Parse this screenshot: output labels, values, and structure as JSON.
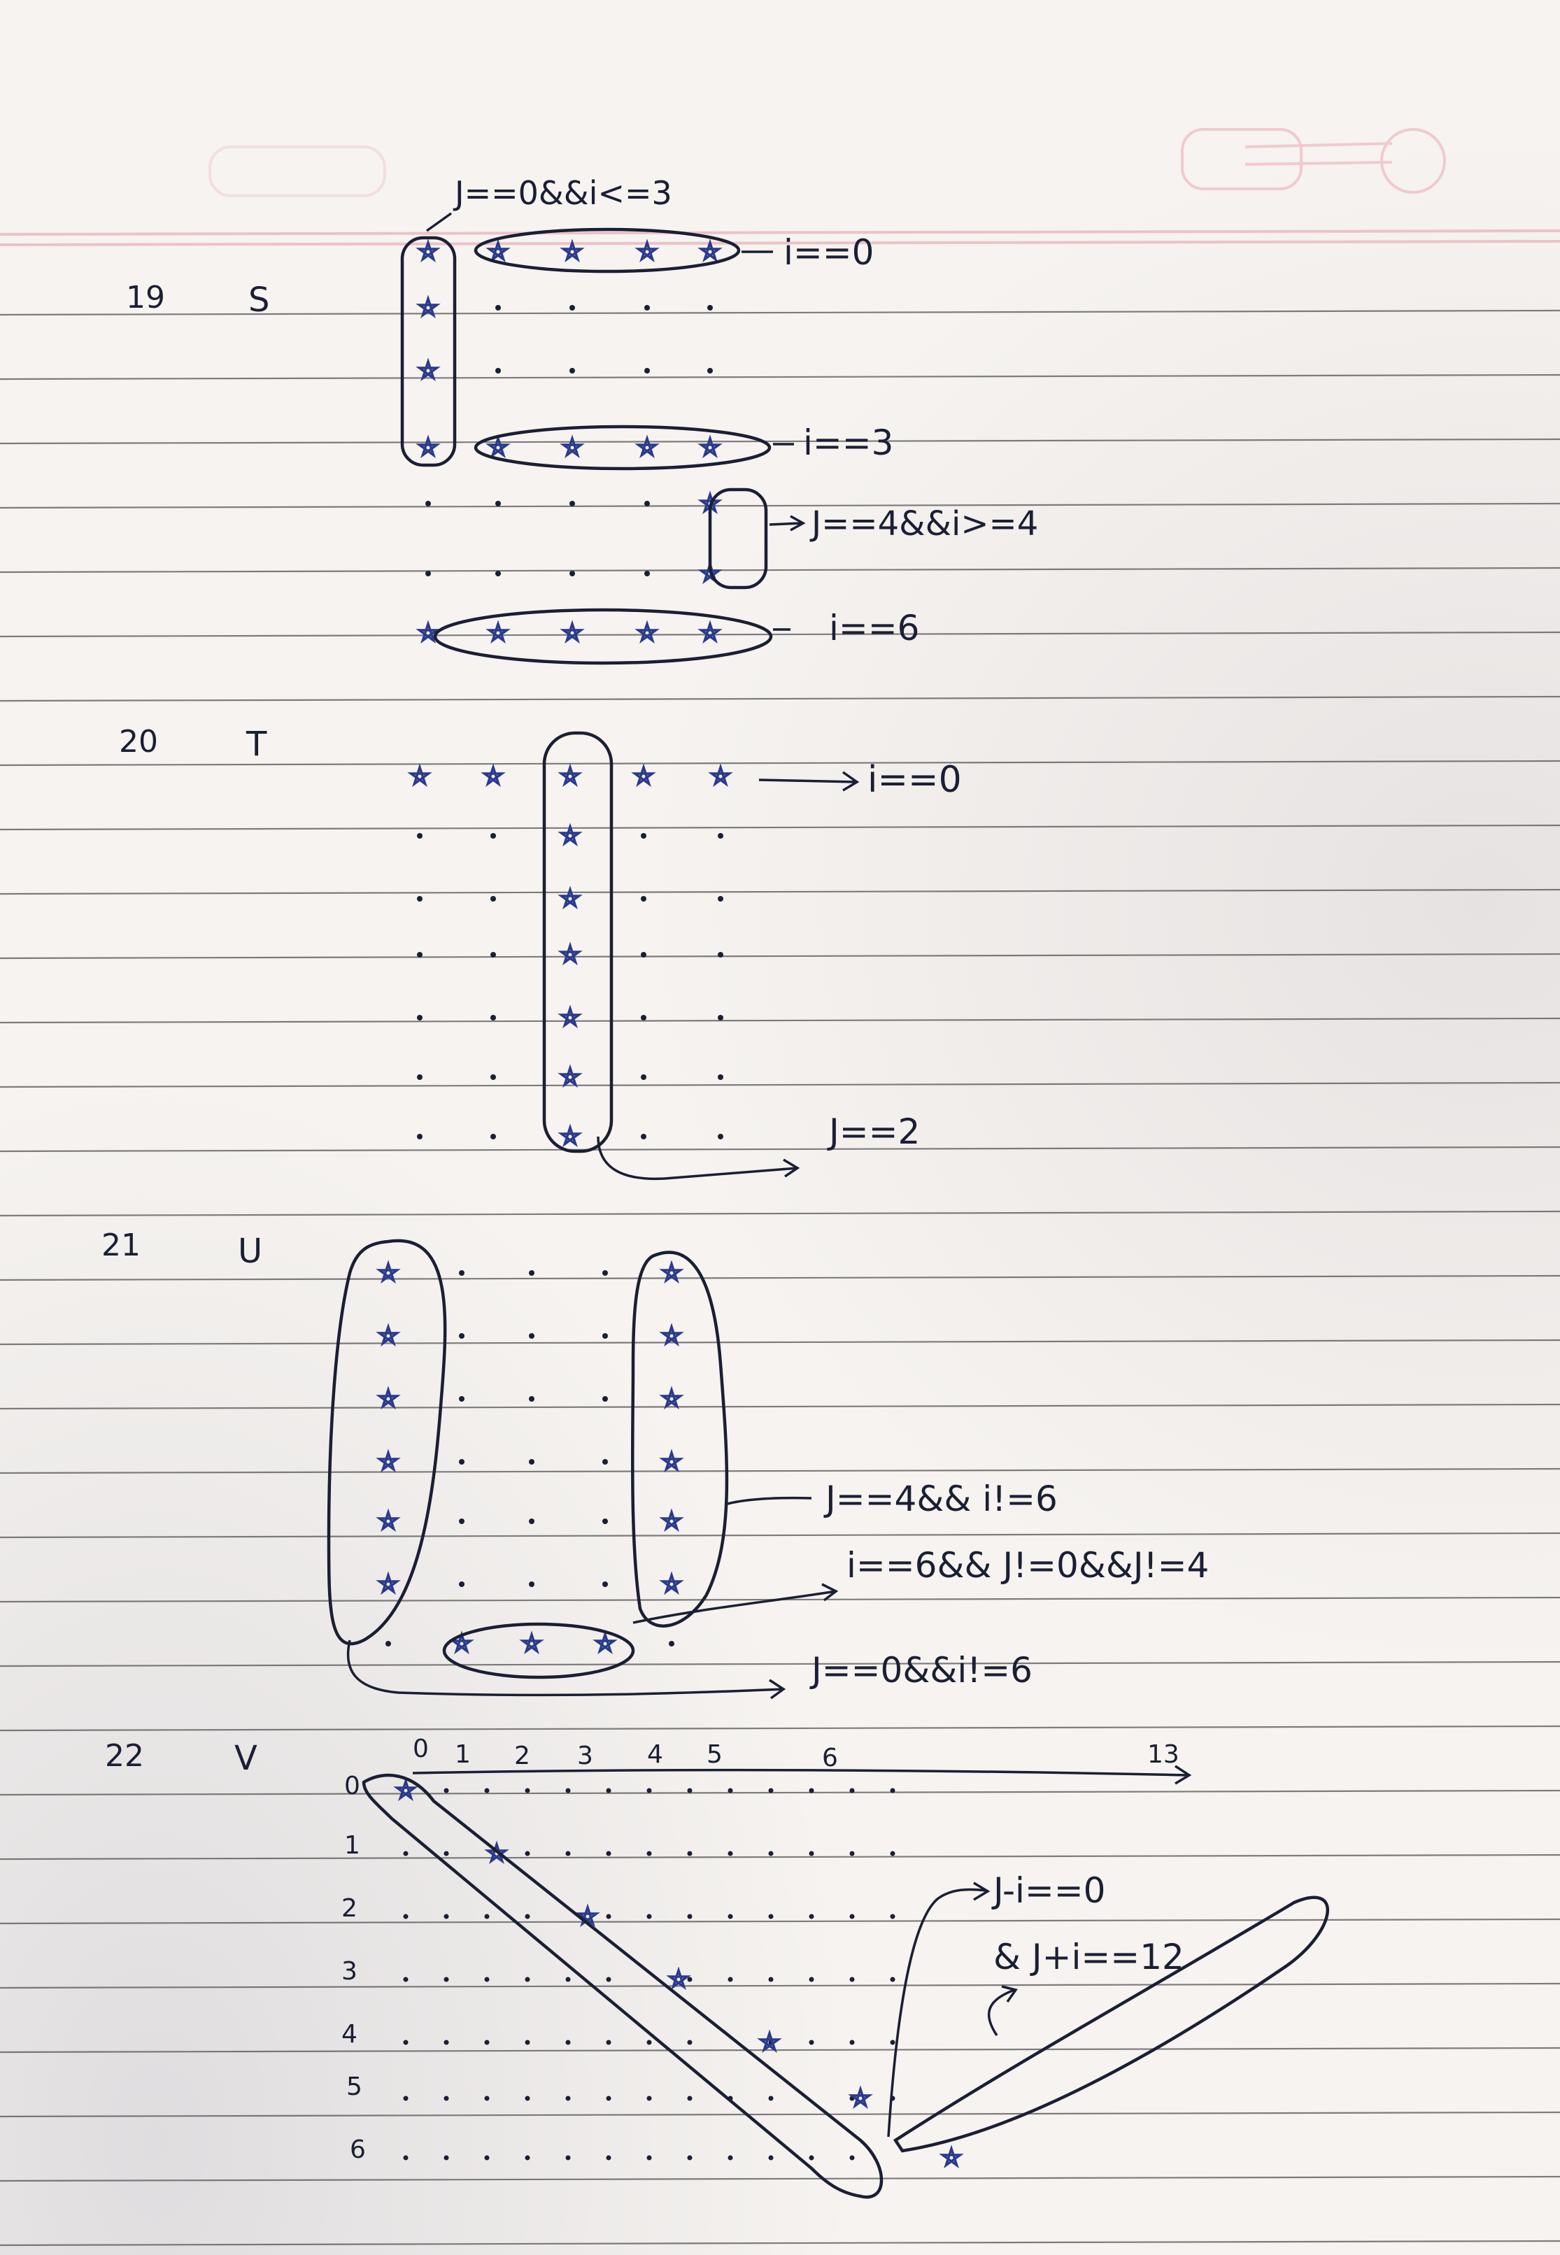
{
  "problems": [
    {
      "number": "19",
      "letter": "S",
      "labels": [
        "J==0&&i<=3",
        "i==0",
        "i==3",
        "J==4&&i>=4",
        "i==6"
      ]
    },
    {
      "number": "20",
      "letter": "T",
      "labels": [
        "i==0",
        "J==2"
      ]
    },
    {
      "number": "21",
      "letter": "U",
      "labels": [
        "J==4&& i!=6",
        "i==6&& J!=0&&J!=4",
        "J==0&&i!=6"
      ]
    },
    {
      "number": "22",
      "letter": "V",
      "column_labels": [
        "0",
        "1",
        "2",
        "3",
        "4",
        "5",
        "6",
        "13"
      ],
      "row_labels": [
        "0",
        "1",
        "2",
        "3",
        "4",
        "5",
        "6"
      ],
      "labels": [
        "J-i==0",
        "& J+i==12"
      ]
    }
  ],
  "colors": {
    "ink": "#1a1f33",
    "star_ink": "#2a3a8c",
    "ruled_line": "#3a3a3a",
    "margin_line": "#e7a3ad"
  }
}
